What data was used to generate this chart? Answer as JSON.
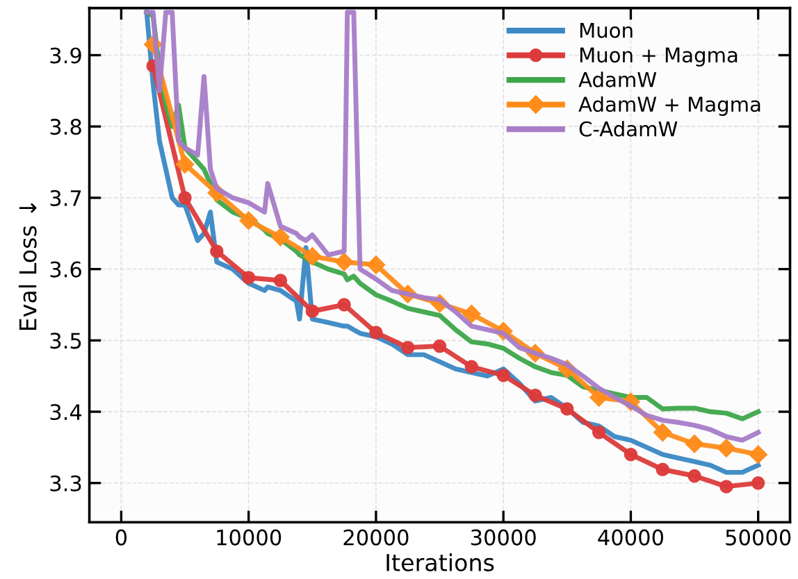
{
  "chart_data": {
    "type": "line",
    "xlabel": "Iterations",
    "ylabel": "Eval Loss ↓",
    "x": [
      2000,
      2500,
      3000,
      3500,
      4000,
      4500,
      5000,
      6000,
      6500,
      7000,
      7500,
      8750,
      10000,
      11250,
      11500,
      12500,
      13750,
      14000,
      14500,
      15000,
      16250,
      17500,
      17750,
      18250,
      18750,
      20000,
      21250,
      22500,
      23750,
      25000,
      26250,
      27500,
      28750,
      30000,
      31250,
      32500,
      33750,
      35000,
      36250,
      37500,
      38750,
      40000,
      41250,
      42500,
      43750,
      45000,
      46250,
      47500,
      48750,
      50000
    ],
    "series": [
      {
        "name": "Muon",
        "color": "#3a88c4",
        "marker": "none",
        "values": [
          3.96,
          3.86,
          3.78,
          3.74,
          3.7,
          3.69,
          3.69,
          3.64,
          3.65,
          3.68,
          3.61,
          3.6,
          3.58,
          3.57,
          3.575,
          3.57,
          3.555,
          3.53,
          3.63,
          3.53,
          3.525,
          3.52,
          3.52,
          3.515,
          3.51,
          3.505,
          3.495,
          3.48,
          3.48,
          3.47,
          3.46,
          3.455,
          3.45,
          3.46,
          3.44,
          3.415,
          3.42,
          3.405,
          3.385,
          3.38,
          3.365,
          3.36,
          3.35,
          3.34,
          3.335,
          3.33,
          3.325,
          3.315,
          3.315,
          3.325
        ]
      },
      {
        "name": "Muon + Magma",
        "color": "#dc3b3b",
        "marker": "circle",
        "x": [
          2500,
          5000,
          7500,
          10000,
          12500,
          15000,
          17500,
          20000,
          22500,
          25000,
          27500,
          30000,
          32500,
          35000,
          37500,
          40000,
          42500,
          45000,
          47500,
          50000
        ],
        "values": [
          3.885,
          3.7,
          3.625,
          3.588,
          3.584,
          3.541,
          3.55,
          3.511,
          3.49,
          3.492,
          3.463,
          3.451,
          3.423,
          3.404,
          3.371,
          3.34,
          3.319,
          3.31,
          3.295,
          3.3
        ]
      },
      {
        "name": "AdamW",
        "color": "#3da64a",
        "marker": "none",
        "values": [
          3.96,
          3.955,
          3.88,
          3.83,
          3.8,
          3.83,
          3.77,
          3.75,
          3.74,
          3.72,
          3.697,
          3.68,
          3.671,
          3.655,
          3.65,
          3.642,
          3.625,
          3.62,
          3.615,
          3.61,
          3.6,
          3.593,
          3.585,
          3.59,
          3.58,
          3.564,
          3.555,
          3.545,
          3.54,
          3.535,
          3.515,
          3.498,
          3.495,
          3.489,
          3.475,
          3.463,
          3.455,
          3.451,
          3.435,
          3.43,
          3.425,
          3.42,
          3.42,
          3.404,
          3.405,
          3.405,
          3.4,
          3.398,
          3.39,
          3.4
        ]
      },
      {
        "name": "AdamW + Magma",
        "color": "#ff8c1a",
        "marker": "diamond",
        "x": [
          2500,
          5000,
          7500,
          10000,
          12500,
          15000,
          17500,
          20000,
          22500,
          25000,
          27500,
          30000,
          32500,
          35000,
          37500,
          40000,
          42500,
          45000,
          47500,
          50000
        ],
        "values": [
          3.915,
          3.747,
          3.707,
          3.668,
          3.645,
          3.618,
          3.61,
          3.606,
          3.565,
          3.552,
          3.537,
          3.513,
          3.482,
          3.46,
          3.42,
          3.414,
          3.371,
          3.355,
          3.349,
          3.34
        ]
      },
      {
        "name": "C-AdamW",
        "color": "#a77cc8",
        "marker": "none",
        "values": [
          3.96,
          3.96,
          3.85,
          3.96,
          3.96,
          3.78,
          3.77,
          3.76,
          3.87,
          3.74,
          3.713,
          3.7,
          3.693,
          3.68,
          3.72,
          3.66,
          3.65,
          3.645,
          3.64,
          3.648,
          3.62,
          3.625,
          3.96,
          3.96,
          3.6,
          3.586,
          3.57,
          3.565,
          3.56,
          3.557,
          3.54,
          3.52,
          3.515,
          3.51,
          3.49,
          3.482,
          3.475,
          3.466,
          3.45,
          3.433,
          3.42,
          3.408,
          3.395,
          3.388,
          3.385,
          3.381,
          3.375,
          3.365,
          3.36,
          3.371
        ]
      }
    ],
    "xlim": [
      -2500,
      52500
    ],
    "ylim": [
      3.245,
      3.966
    ],
    "xticks": [
      0,
      10000,
      20000,
      30000,
      40000,
      50000
    ],
    "yticks": [
      3.3,
      3.4,
      3.5,
      3.6,
      3.7,
      3.8,
      3.9
    ],
    "grid": true,
    "legend": "top right",
    "line_style": "solid"
  }
}
